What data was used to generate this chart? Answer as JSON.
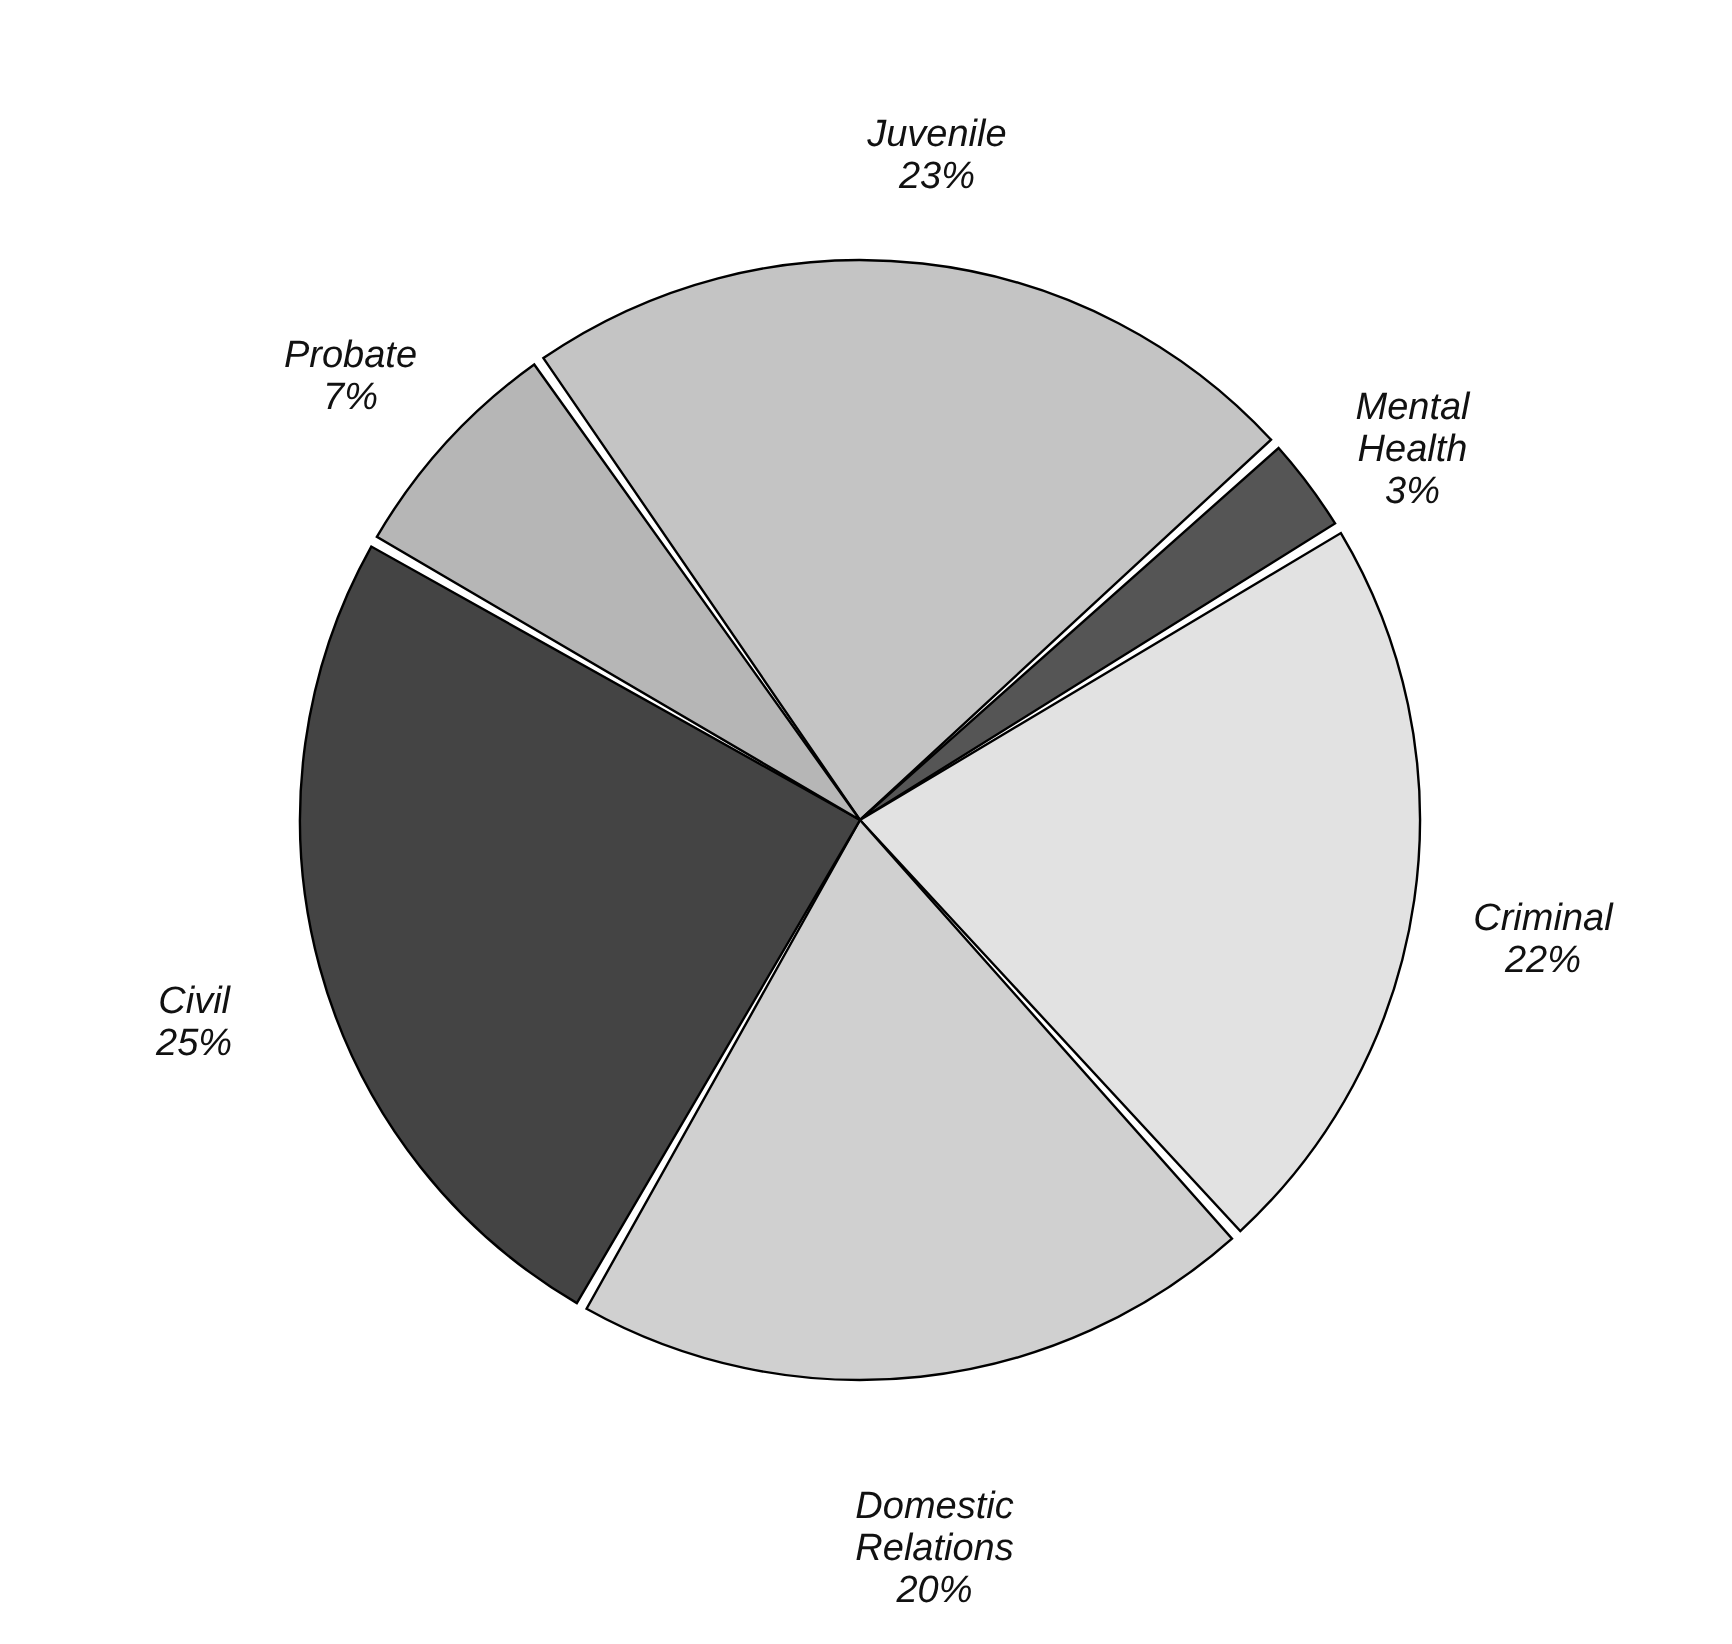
{
  "chart_data": {
    "type": "pie",
    "categories": [
      "Juvenile",
      "Mental Health",
      "Criminal",
      "Domestic Relations",
      "Civil",
      "Probate"
    ],
    "values": [
      23,
      3,
      22,
      20,
      25,
      7
    ],
    "value_labels": [
      "23%",
      "3%",
      "22%",
      "20%",
      "25%",
      "7%"
    ],
    "colors": [
      "#c4c4c4",
      "#555555",
      "#e2e2e2",
      "#d0d0d0",
      "#444444",
      "#b6b6b6"
    ],
    "legend": false
  }
}
